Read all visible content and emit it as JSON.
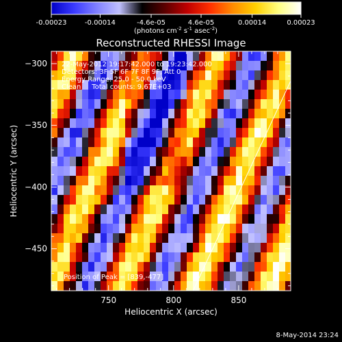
{
  "colorbar": {
    "colors": [
      "#0000c8",
      "#3a3aff",
      "#8080ff",
      "#c0c0ff",
      "#000000",
      "#5a0000",
      "#c00000",
      "#ff3000",
      "#ff8c00",
      "#ffd000",
      "#ffff80",
      "#ffffff"
    ],
    "ticks": [
      "-0.00023",
      "-0.00014",
      "-4.6e-05",
      "4.6e-05",
      "0.00014",
      "0.00023"
    ],
    "tick_values": [
      -0.00023,
      -0.00014,
      -4.6e-05,
      4.6e-05,
      0.00014,
      0.00023
    ],
    "range": [
      -0.00023,
      0.00023
    ],
    "unit_main": "(photons cm",
    "unit_sup1": "-2",
    "unit_mid": " s",
    "unit_sup2": "-1",
    "unit_end": " asec",
    "unit_sup3": "-2",
    "unit_close": ")"
  },
  "chart_data": {
    "type": "heatmap",
    "title": "Reconstructed RHESSI Image",
    "xlabel": "Heliocentric X (arcsec)",
    "ylabel": "Heliocentric Y (arcsec)",
    "xlim": [
      706,
      890
    ],
    "ylim": [
      -484,
      -290
    ],
    "xticks": [
      750,
      800,
      850
    ],
    "yticks": [
      -300,
      -350,
      -400,
      -450
    ],
    "annotations": [
      "22-May-2012 19:17:42.000 to 19:23:42.000",
      "Detectors: 3F 5F 6F 7F 8F 9F, Att 0",
      "Energy Range: 25.0 - 50.0 keV",
      "Clean     Total counts: 9.67E+03",
      "Position of Peak = [839,-477]"
    ],
    "limb_line": {
      "x": [
        815,
        890
      ],
      "y": [
        -484,
        -314
      ]
    },
    "peak": {
      "x": 839,
      "y": -477
    }
  },
  "footer_date": "8-May-2014 23:24"
}
